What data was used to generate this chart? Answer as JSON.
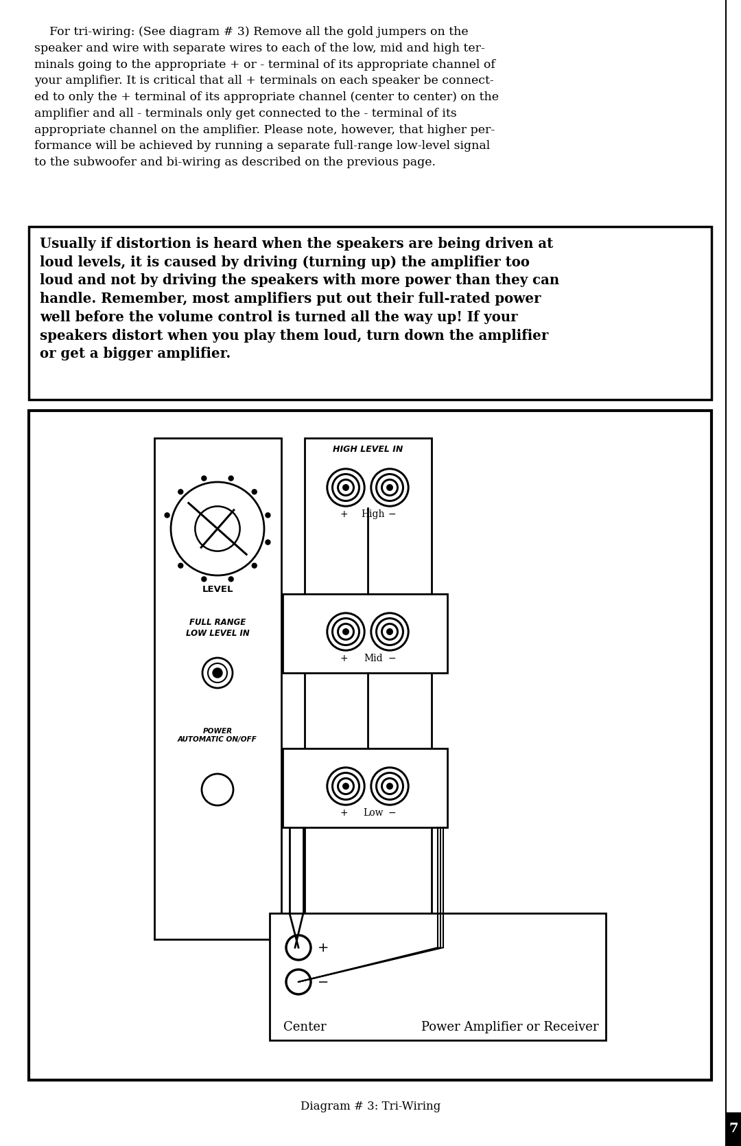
{
  "bg_color": "#ffffff",
  "body_text_line1": "    For tri-wiring: (See diagram # 3) Remove all the gold jumpers on the",
  "body_text_line2": "speaker and wire with separate wires to each of the low, mid and high ter-",
  "body_text_line3": "minals going to the appropriate + or - terminal of its appropriate channel of",
  "body_text_line4": "your amplifier. It is critical that all + terminals on each speaker be connect-",
  "body_text_line5": "ed to only the + terminal of its appropriate channel (center to center) on the",
  "body_text_line6": "amplifier and all - terminals only get connected to the - terminal of its",
  "body_text_line7": "appropriate channel on the amplifier. Please note, however, that higher per-",
  "body_text_line8": "formance will be achieved by running a separate full-range low-level signal",
  "body_text_line9": "to the subwoofer and bi-wiring as described on the previous page.",
  "warning_line1": "Usually if distortion is heard when the speakers are being driven at",
  "warning_line2": "loud levels, it is caused by driving (turning up) the amplifier too",
  "warning_line3": "loud and not by driving the speakers with more power than they can",
  "warning_line4": "handle. Remember, most amplifiers put out their full-rated power",
  "warning_line5": "well before the volume control is turned all the way up! If your",
  "warning_line6": "speakers distort when you play them loud, turn down the amplifier",
  "warning_line7": "or get a bigger amplifier.",
  "caption_text": "Diagram # 3: Tri-Wiring",
  "page_number": "7",
  "high_label": "HIGH LEVEL IN",
  "high_plus_minus": "+ High −",
  "mid_plus_minus": "+ Mid −",
  "low_plus_minus": "+ Low −",
  "level_label": "LEVEL",
  "fullrange_label": "FULL RANGE\nLOW LEVEL IN",
  "power_label": "POWER\nAUTOMATIC ON/OFF",
  "center_label": "Center",
  "amp_label": "Power Amplifier or Receiver"
}
